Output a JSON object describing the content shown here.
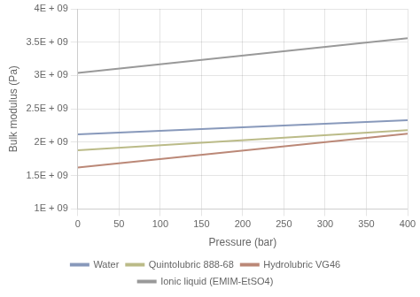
{
  "chart_data": {
    "type": "line",
    "xlabel": "Pressure (bar)",
    "ylabel": "Bulk modulus (Pa)",
    "x": [
      0,
      400
    ],
    "series": [
      {
        "name": "Water",
        "color": "#8899bb",
        "values": [
          2120000000.0,
          2330000000.0
        ]
      },
      {
        "name": "Quintolubric 888-68",
        "color": "#bbbb88",
        "values": [
          1880000000.0,
          2180000000.0
        ]
      },
      {
        "name": "Hydrolubric VG46",
        "color": "#bb8877",
        "values": [
          1620000000.0,
          2130000000.0
        ]
      },
      {
        "name": "Ionic liquid (EMIM-EtSO4)",
        "color": "#999999",
        "values": [
          3040000000.0,
          3560000000.0
        ]
      }
    ],
    "xlim": [
      0,
      400
    ],
    "xticks": [
      0,
      50,
      100,
      150,
      200,
      250,
      300,
      350,
      400
    ],
    "ylim": [
      1000000000.0,
      4000000000.0
    ],
    "yticks": [
      {
        "value": 1000000000.0,
        "label": "1E + 09"
      },
      {
        "value": 1500000000.0,
        "label": "1.5E + 09"
      },
      {
        "value": 2000000000.0,
        "label": "2E + 09"
      },
      {
        "value": 2500000000.0,
        "label": "2.5E + 09"
      },
      {
        "value": 3000000000.0,
        "label": "3E + 09"
      },
      {
        "value": 3500000000.0,
        "label": "3.5E + 09"
      },
      {
        "value": 4000000000.0,
        "label": "4E + 09"
      }
    ],
    "grid": true,
    "legend": "bottom"
  }
}
